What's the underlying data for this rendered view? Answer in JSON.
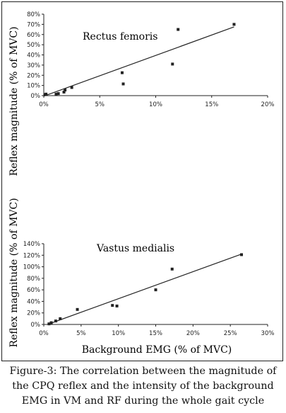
{
  "chart_data": [
    {
      "type": "scatter",
      "annotation": "Rectus femoris",
      "xlabel": "",
      "ylabel": "Reflex magnitude (% of MVC)",
      "xlim": [
        0,
        20
      ],
      "ylim": [
        0,
        80
      ],
      "x_ticks": [
        "0%",
        "5%",
        "10%",
        "15%",
        "20%"
      ],
      "y_ticks": [
        "0%",
        "10%",
        "20%",
        "30%",
        "40%",
        "50%",
        "60%",
        "70%",
        "80%"
      ],
      "x_tick_values": [
        0,
        5,
        10,
        15,
        20
      ],
      "y_tick_values": [
        0,
        10,
        20,
        30,
        40,
        50,
        60,
        70,
        80
      ],
      "points": [
        {
          "x": 0.1,
          "y": 1
        },
        {
          "x": 0.2,
          "y": 1.5
        },
        {
          "x": 1.1,
          "y": 1.5
        },
        {
          "x": 1.3,
          "y": 2
        },
        {
          "x": 1.8,
          "y": 3.5
        },
        {
          "x": 1.9,
          "y": 5.5
        },
        {
          "x": 2.5,
          "y": 8
        },
        {
          "x": 7.0,
          "y": 22.5
        },
        {
          "x": 7.1,
          "y": 11.5
        },
        {
          "x": 11.5,
          "y": 31
        },
        {
          "x": 12.0,
          "y": 65
        },
        {
          "x": 17.0,
          "y": 70
        }
      ],
      "trendline": [
        [
          0,
          -0.5
        ],
        [
          17.0,
          67.5
        ]
      ],
      "grid": false
    },
    {
      "type": "scatter",
      "annotation": "Vastus medialis",
      "xlabel": "Background EMG (% of MVC)",
      "ylabel": "Reflex magnitude (% of MVC)",
      "xlim": [
        0,
        30
      ],
      "ylim": [
        0,
        140
      ],
      "x_ticks": [
        "0%",
        "5%",
        "10%",
        "15%",
        "20%",
        "25%",
        "30%"
      ],
      "y_ticks": [
        "0%",
        "20%",
        "40%",
        "60%",
        "80%",
        "100%",
        "120%",
        "140%"
      ],
      "x_tick_values": [
        0,
        5,
        10,
        15,
        20,
        25,
        30
      ],
      "y_tick_values": [
        0,
        20,
        40,
        60,
        80,
        100,
        120,
        140
      ],
      "points": [
        {
          "x": 0.7,
          "y": 1
        },
        {
          "x": 1.0,
          "y": 3
        },
        {
          "x": 1.6,
          "y": 6
        },
        {
          "x": 2.2,
          "y": 10
        },
        {
          "x": 4.5,
          "y": 26
        },
        {
          "x": 9.2,
          "y": 33
        },
        {
          "x": 9.8,
          "y": 32
        },
        {
          "x": 15.0,
          "y": 60
        },
        {
          "x": 17.2,
          "y": 96
        },
        {
          "x": 26.5,
          "y": 121
        }
      ],
      "trendline": [
        [
          0.5,
          0
        ],
        [
          26.5,
          122
        ]
      ],
      "grid": false
    }
  ],
  "caption": {
    "line1": "Figure-3: The correlation between the magnitude of",
    "line2": "the CPQ reflex and the intensity of the background",
    "line3": "EMG in VM and RF during the whole gait cycle"
  }
}
